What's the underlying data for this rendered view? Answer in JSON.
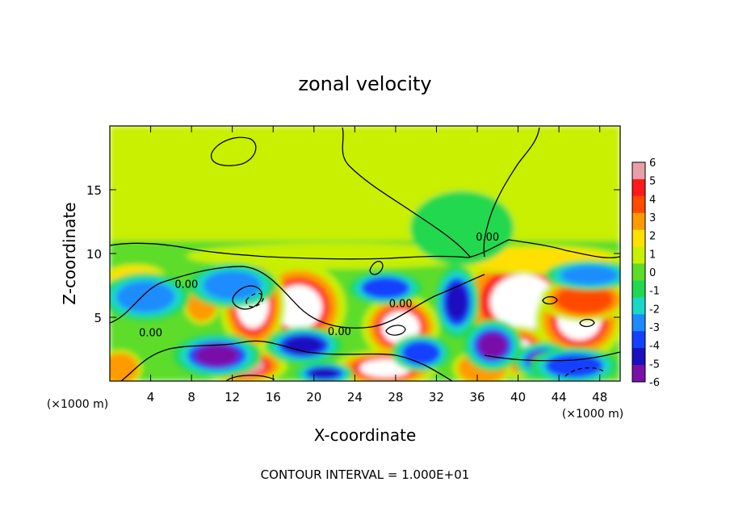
{
  "chart_data": {
    "type": "heatmap",
    "title": "zonal velocity",
    "xlabel": "X-coordinate",
    "ylabel": "Z-coordinate",
    "x_unit_left": "(×1000 m)",
    "x_unit_right": "(×1000 m)",
    "footer": "CONTOUR INTERVAL = 1.000E+01",
    "xlim": [
      0,
      50
    ],
    "ylim": [
      0,
      20
    ],
    "x_ticks": [
      4,
      8,
      12,
      16,
      20,
      24,
      28,
      32,
      36,
      40,
      44,
      48
    ],
    "y_ticks": [
      5,
      10,
      15
    ],
    "colorbar": {
      "min": -6,
      "max": 6,
      "ticks": [
        6,
        5,
        4,
        3,
        2,
        1,
        0,
        -1,
        -2,
        -3,
        -4,
        -5,
        -6
      ],
      "colors": [
        "#e8a0a6",
        "#ff1a1a",
        "#ff4a00",
        "#ff9a00",
        "#ffe000",
        "#c8f000",
        "#5ddc2a",
        "#22d850",
        "#1ad8c8",
        "#1a8cff",
        "#1440ff",
        "#1a10c0",
        "#7a10a8"
      ]
    },
    "contour_labels": [
      {
        "text": "0.00",
        "x": 7.5,
        "z": 7.3
      },
      {
        "text": "0.00",
        "x": 4.0,
        "z": 3.5
      },
      {
        "text": "0.00",
        "x": 22.5,
        "z": 3.6
      },
      {
        "text": "0.00",
        "x": 28.5,
        "z": 5.8
      },
      {
        "text": "0.00",
        "x": 37.0,
        "z": 11.0
      }
    ],
    "field_blobs": [
      {
        "x": 18.5,
        "z": 5.8,
        "rx": 3.2,
        "rz": 2.4,
        "v": 8
      },
      {
        "x": 28.5,
        "z": 4.2,
        "rx": 2.6,
        "rz": 1.8,
        "v": 8
      },
      {
        "x": 40.5,
        "z": 6.2,
        "rx": 4.5,
        "rz": 3.0,
        "v": 8
      },
      {
        "x": 46.0,
        "z": 4.8,
        "rx": 3.0,
        "rz": 2.2,
        "v": 8
      },
      {
        "x": 46.5,
        "z": 6.4,
        "rx": 3.0,
        "rz": 1.2,
        "v": 4
      },
      {
        "x": 40.0,
        "z": 2.3,
        "rx": 2.2,
        "rz": 1.4,
        "v": 7
      },
      {
        "x": 27.0,
        "z": 1.0,
        "rx": 3.5,
        "rz": 1.0,
        "v": 7
      },
      {
        "x": 14.0,
        "z": 6.0,
        "rx": 2.2,
        "rz": 2.6,
        "v": 7
      },
      {
        "x": 13.0,
        "z": 1.2,
        "rx": 3.0,
        "rz": 1.0,
        "v": 6
      },
      {
        "x": 9.0,
        "z": 5.9,
        "rx": 1.2,
        "rz": 1.0,
        "v": 3.5
      },
      {
        "x": 2.5,
        "z": 8.3,
        "rx": 2.0,
        "rz": 0.6,
        "v": 2.5
      },
      {
        "x": 36.5,
        "z": 1.0,
        "rx": 2.0,
        "rz": 1.0,
        "v": 3
      },
      {
        "x": 22.0,
        "z": 9.8,
        "rx": 10.0,
        "rz": 0.7,
        "v": 1.5
      },
      {
        "x": 42.0,
        "z": 9.5,
        "rx": 6.0,
        "rz": 0.8,
        "v": 2.5
      },
      {
        "x": 10.5,
        "z": 2.0,
        "rx": 3.0,
        "rz": 1.2,
        "v": -6
      },
      {
        "x": 19.0,
        "z": 2.8,
        "rx": 2.6,
        "rz": 1.0,
        "v": -5
      },
      {
        "x": 34.0,
        "z": 6.2,
        "rx": 1.5,
        "rz": 2.0,
        "v": -5
      },
      {
        "x": 37.5,
        "z": 2.8,
        "rx": 2.0,
        "rz": 1.4,
        "v": -6
      },
      {
        "x": 42.5,
        "z": 1.6,
        "rx": 2.0,
        "rz": 1.0,
        "v": -6
      },
      {
        "x": 45.5,
        "z": 1.2,
        "rx": 3.0,
        "rz": 1.0,
        "v": -4
      },
      {
        "x": 30.5,
        "z": 2.2,
        "rx": 2.0,
        "rz": 1.0,
        "v": -4
      },
      {
        "x": 27.0,
        "z": 7.3,
        "rx": 2.5,
        "rz": 0.9,
        "v": -3.5
      },
      {
        "x": 3.5,
        "z": 6.6,
        "rx": 3.0,
        "rz": 1.3,
        "v": -2.5
      },
      {
        "x": 12.0,
        "z": 7.5,
        "rx": 3.0,
        "rz": 1.2,
        "v": -3
      },
      {
        "x": 47.0,
        "z": 8.3,
        "rx": 3.0,
        "rz": 0.8,
        "v": -3
      },
      {
        "x": 21.0,
        "z": 0.6,
        "rx": 2.0,
        "rz": 0.6,
        "v": -5
      },
      {
        "x": 1.0,
        "z": 1.0,
        "rx": 1.5,
        "rz": 1.0,
        "v": 3
      },
      {
        "x": 34.5,
        "z": 12.0,
        "rx": 3.5,
        "rz": 2.0,
        "v": -1.2
      }
    ]
  }
}
